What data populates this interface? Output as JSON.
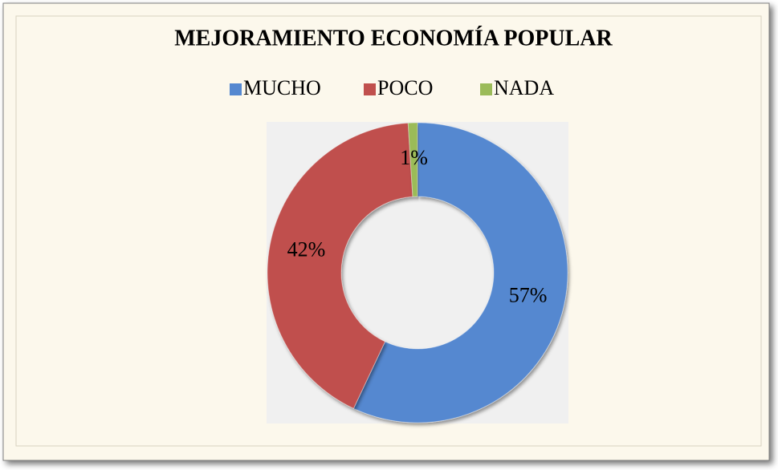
{
  "chart_data": {
    "type": "donut",
    "title": "MEJORAMIENTO ECONOMÍA POPULAR",
    "categories": [
      "MUCHO",
      "POCO",
      "NADA"
    ],
    "values": [
      57,
      42,
      1
    ],
    "value_labels": [
      "57%",
      "42%",
      "1%"
    ],
    "colors": [
      "#5588d0",
      "#c0504d",
      "#9bbb59"
    ],
    "legend": "top"
  }
}
